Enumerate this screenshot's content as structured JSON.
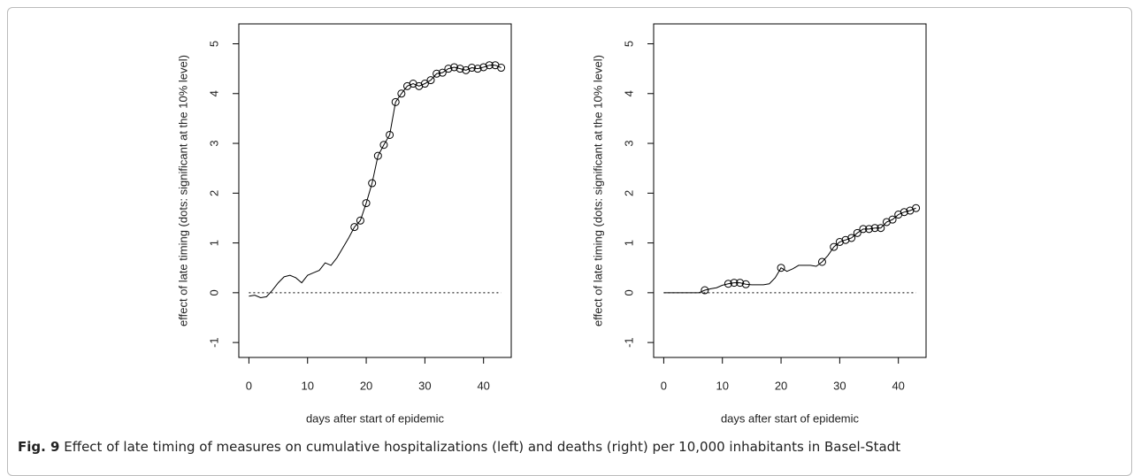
{
  "chart_data": [
    {
      "type": "line",
      "x_label": "days after start of epidemic",
      "y_label": "effect of late timing (dots: significant at the 10% level)",
      "x": [
        0,
        1,
        2,
        3,
        4,
        5,
        6,
        7,
        8,
        9,
        10,
        11,
        12,
        13,
        14,
        15,
        16,
        17,
        18,
        19,
        20,
        21,
        22,
        23,
        24,
        25,
        26,
        27,
        28,
        29,
        30,
        31,
        32,
        33,
        34,
        35,
        36,
        37,
        38,
        39,
        40,
        41,
        42,
        43
      ],
      "series": [
        {
          "style": "line",
          "color": "#000000",
          "values": [
            -0.07,
            -0.05,
            -0.1,
            -0.08,
            0.05,
            0.2,
            0.32,
            0.35,
            0.3,
            0.2,
            0.35,
            0.4,
            0.45,
            0.6,
            0.55,
            0.7,
            0.9,
            1.1,
            1.32,
            1.45,
            1.8,
            2.2,
            2.75,
            2.97,
            3.17,
            3.83,
            4.0,
            4.15,
            4.2,
            4.15,
            4.2,
            4.27,
            4.4,
            4.42,
            4.5,
            4.53,
            4.5,
            4.47,
            4.52,
            4.5,
            4.53,
            4.57,
            4.57,
            4.52
          ]
        },
        {
          "style": "points",
          "color": "#000000",
          "values": [
            null,
            null,
            null,
            null,
            null,
            null,
            null,
            null,
            null,
            null,
            null,
            null,
            null,
            null,
            null,
            null,
            null,
            null,
            1.32,
            1.45,
            1.8,
            2.2,
            2.75,
            2.97,
            3.17,
            3.83,
            4.0,
            4.15,
            4.2,
            4.15,
            4.2,
            4.27,
            4.4,
            4.42,
            4.5,
            4.53,
            4.5,
            4.47,
            4.52,
            4.5,
            4.53,
            4.57,
            4.57,
            4.52
          ]
        }
      ],
      "hline": 0,
      "xlim": [
        -1.72,
        44.72
      ],
      "xticks": [
        0,
        10,
        20,
        30,
        40
      ],
      "ylim": [
        -1.3,
        5.4
      ],
      "yticks": [
        -1,
        0,
        1,
        2,
        3,
        4,
        5
      ]
    },
    {
      "type": "line",
      "x_label": "days after start of epidemic",
      "y_label": "effect of late timing (dots: significant at the 10% level)",
      "x": [
        0,
        1,
        2,
        3,
        4,
        5,
        6,
        7,
        8,
        9,
        10,
        11,
        12,
        13,
        14,
        15,
        16,
        17,
        18,
        19,
        20,
        21,
        22,
        23,
        24,
        25,
        26,
        27,
        28,
        29,
        30,
        31,
        32,
        33,
        34,
        35,
        36,
        37,
        38,
        39,
        40,
        41,
        42,
        43
      ],
      "series": [
        {
          "style": "line",
          "color": "#000000",
          "values": [
            0,
            0,
            0,
            0,
            0,
            0,
            0,
            0.05,
            0.08,
            0.1,
            0.15,
            0.18,
            0.2,
            0.2,
            0.17,
            0.16,
            0.16,
            0.16,
            0.18,
            0.3,
            0.5,
            0.43,
            0.48,
            0.55,
            0.55,
            0.55,
            0.53,
            0.62,
            0.75,
            0.92,
            1.02,
            1.06,
            1.1,
            1.2,
            1.28,
            1.28,
            1.3,
            1.3,
            1.42,
            1.47,
            1.57,
            1.62,
            1.65,
            1.7
          ]
        },
        {
          "style": "points",
          "color": "#000000",
          "values": [
            null,
            null,
            null,
            null,
            null,
            null,
            null,
            0.05,
            null,
            null,
            null,
            0.18,
            0.2,
            0.2,
            0.17,
            null,
            null,
            null,
            null,
            null,
            0.5,
            null,
            null,
            null,
            null,
            null,
            null,
            0.62,
            null,
            0.92,
            1.02,
            1.06,
            1.1,
            1.2,
            1.28,
            1.28,
            1.3,
            1.3,
            1.42,
            1.47,
            1.57,
            1.62,
            1.65,
            1.7
          ]
        }
      ],
      "hline": 0,
      "xlim": [
        -1.72,
        44.72
      ],
      "xticks": [
        0,
        10,
        20,
        30,
        40
      ],
      "ylim": [
        -1.3,
        5.4
      ],
      "yticks": [
        -1,
        0,
        1,
        2,
        3,
        4,
        5
      ]
    }
  ],
  "caption": {
    "label": "Fig. 9",
    "text": "Effect of late timing of measures on cumulative hospitalizations (left) and deaths (right) per 10,000 inhabitants in Basel-Stadt"
  }
}
